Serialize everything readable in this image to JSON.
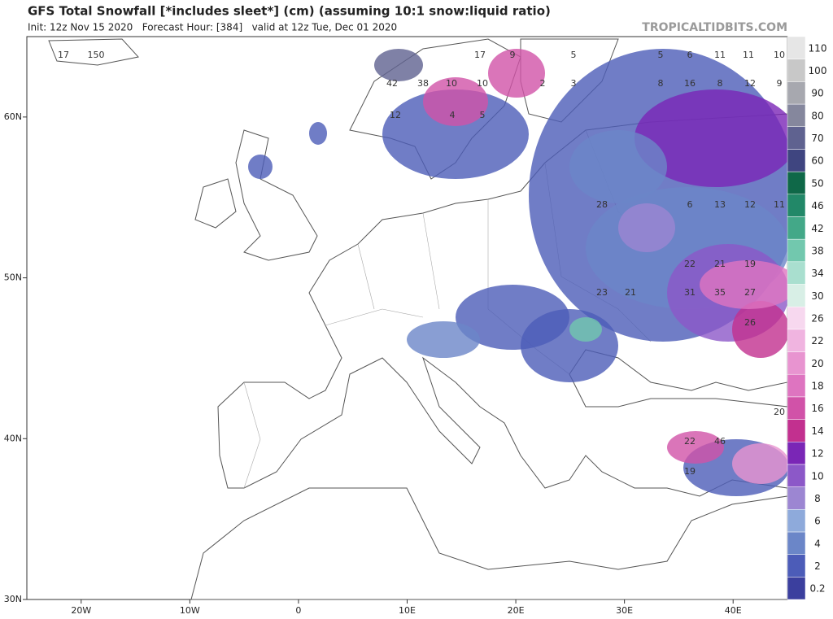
{
  "header": {
    "title": "GFS Total Snowfall [*includes sleet*] (cm) (assuming 10:1 snow:liquid ratio)",
    "subtitle": "Init: 12z Nov 15 2020   Forecast Hour: [384]   valid at 12z Tue, Dec 01 2020",
    "source": "TROPICALTIDBITS.COM"
  },
  "map": {
    "lon_range": [
      -25,
      45
    ],
    "lat_range": [
      30,
      65
    ],
    "lon_ticks": [
      {
        "value": -20,
        "label": "20W"
      },
      {
        "value": -10,
        "label": "10W"
      },
      0,
      {
        "value": 10,
        "label": "10E"
      },
      {
        "value": 20,
        "label": "20E"
      },
      {
        "value": 30,
        "label": "30E"
      },
      {
        "value": 40,
        "label": "40E"
      }
    ],
    "lat_ticks": [
      {
        "value": 30,
        "label": "30N"
      },
      {
        "value": 40,
        "label": "40N"
      },
      {
        "value": 50,
        "label": "50N"
      },
      {
        "value": 60,
        "label": "60N"
      }
    ],
    "labels": [
      "17",
      "150",
      "17",
      "9",
      "42",
      "38",
      "10",
      "10",
      "12",
      "4",
      "5",
      "5",
      "5",
      "6",
      "11",
      "11",
      "10",
      "2",
      "3",
      "8",
      "16",
      "8",
      "12",
      "9",
      "28",
      "6",
      "13",
      "12",
      "11",
      "22",
      "21",
      "19",
      "23",
      "21",
      "31",
      "35",
      "27",
      "26",
      "20",
      "22",
      "46",
      "19"
    ]
  },
  "colorbar": {
    "levels": [
      0.2,
      2,
      4,
      6,
      8,
      10,
      12,
      14,
      16,
      18,
      20,
      22,
      26,
      30,
      34,
      38,
      42,
      46,
      50,
      60,
      70,
      80,
      90,
      100,
      110
    ],
    "colors": [
      "#3b3f9e",
      "#4c5cb8",
      "#6b86c8",
      "#8eaadb",
      "#9c86d2",
      "#8c58c8",
      "#7a26b6",
      "#c2308f",
      "#d152a8",
      "#de74c0",
      "#e894d0",
      "#f0b4e0",
      "#f7d8ef",
      "#d8efe6",
      "#a9dfcf",
      "#72c8ae",
      "#43a888",
      "#228868",
      "#0f6848",
      "#3f4580",
      "#5f6290",
      "#85879d",
      "#a7a8af",
      "#c8c8c8",
      "#e6e6e6"
    ]
  }
}
